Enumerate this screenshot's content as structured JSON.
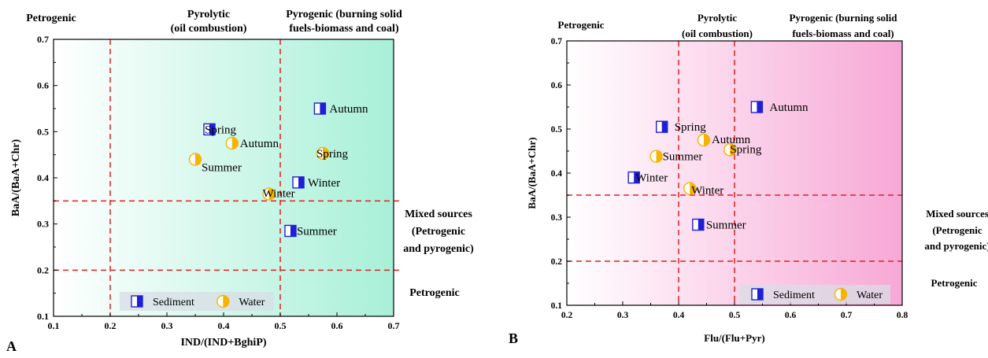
{
  "chart_data": [
    {
      "type": "scatter",
      "panel_label": "A",
      "xlabel": "IND/(IND+BghiP)",
      "ylabel": "BaA/(BaA+Chr)",
      "xlim": [
        0.1,
        0.7
      ],
      "ylim": [
        0.1,
        0.7
      ],
      "x_ticks": [
        "0.1",
        "0.2",
        "0.3",
        "0.4",
        "0.5",
        "0.6",
        "0.7"
      ],
      "y_ticks": [
        "0.1",
        "0.2",
        "0.3",
        "0.4",
        "0.5",
        "0.6",
        "0.7"
      ],
      "thresholds": {
        "x": [
          0.2,
          0.5
        ],
        "y": [
          0.2,
          0.35
        ]
      },
      "background_gradient": [
        "#ffffff",
        "#a8f0d8"
      ],
      "region_labels": {
        "top_left": "Petrogenic",
        "top_mid": [
          "Pyrolytic",
          "(oil combustion)"
        ],
        "top_right": [
          "Pyrogenic (burning solid",
          "fuels-biomass and coal)"
        ],
        "right_mid": [
          "Mixed sources",
          "(Petrogenic",
          "and pyrogenic)"
        ],
        "right_bottom": "Petrogenic"
      },
      "legend": {
        "position": "bottom-center",
        "entries": [
          "Sediment",
          "Water"
        ]
      },
      "series": [
        {
          "name": "Sediment",
          "marker": "half-filled-square",
          "color": "#1f1fd6",
          "points": [
            {
              "x": 0.57,
              "y": 0.55,
              "label": "Autumn"
            },
            {
              "x": 0.375,
              "y": 0.505,
              "label": "Spring"
            },
            {
              "x": 0.532,
              "y": 0.39,
              "label": "Winter"
            },
            {
              "x": 0.518,
              "y": 0.285,
              "label": "Summer"
            }
          ]
        },
        {
          "name": "Water",
          "marker": "half-filled-circle",
          "color": "#f5b400",
          "points": [
            {
              "x": 0.415,
              "y": 0.475,
              "label": "Autumn"
            },
            {
              "x": 0.35,
              "y": 0.44,
              "label": "Summer"
            },
            {
              "x": 0.575,
              "y": 0.453,
              "label": "Spring"
            },
            {
              "x": 0.48,
              "y": 0.365,
              "label": "Winter"
            }
          ]
        }
      ]
    },
    {
      "type": "scatter",
      "panel_label": "B",
      "xlabel": "Flu/(Flu+Pyr)",
      "ylabel": "BaA/(BaA+Chr)",
      "xlim": [
        0.2,
        0.8
      ],
      "ylim": [
        0.1,
        0.7
      ],
      "x_ticks": [
        "0.2",
        "0.3",
        "0.4",
        "0.5",
        "0.6",
        "0.7",
        "0.8"
      ],
      "y_ticks": [
        "0.1",
        "0.2",
        "0.3",
        "0.4",
        "0.5",
        "0.6",
        "0.7"
      ],
      "thresholds": {
        "x": [
          0.4,
          0.5
        ],
        "y": [
          0.2,
          0.35
        ]
      },
      "background_gradient": [
        "#ffffff",
        "#f7a8d6"
      ],
      "region_labels": {
        "top_left": "Petrogenic",
        "top_mid": [
          "Pyrolytic",
          "(oil combustion)"
        ],
        "top_right": [
          "Pyrogenic (burning solid",
          "fuels-biomass and coal)"
        ],
        "right_mid": [
          "Mixed sources",
          "(Petrogenic",
          "and pyrogenic)"
        ],
        "right_bottom": "Petrogenic"
      },
      "legend": {
        "position": "bottom-right",
        "entries": [
          "Sediment",
          "Water"
        ]
      },
      "series": [
        {
          "name": "Sediment",
          "marker": "half-filled-square",
          "color": "#1f1fd6",
          "points": [
            {
              "x": 0.54,
              "y": 0.55,
              "label": "Autumn"
            },
            {
              "x": 0.37,
              "y": 0.505,
              "label": "Spring"
            },
            {
              "x": 0.32,
              "y": 0.39,
              "label": "Winter"
            },
            {
              "x": 0.435,
              "y": 0.283,
              "label": "Summer"
            }
          ]
        },
        {
          "name": "Water",
          "marker": "half-filled-circle",
          "color": "#f5b400",
          "points": [
            {
              "x": 0.445,
              "y": 0.475,
              "label": "Autumn"
            },
            {
              "x": 0.36,
              "y": 0.438,
              "label": "Summer"
            },
            {
              "x": 0.492,
              "y": 0.453,
              "label": "Spring"
            },
            {
              "x": 0.42,
              "y": 0.365,
              "label": "Winter"
            }
          ]
        }
      ]
    }
  ]
}
